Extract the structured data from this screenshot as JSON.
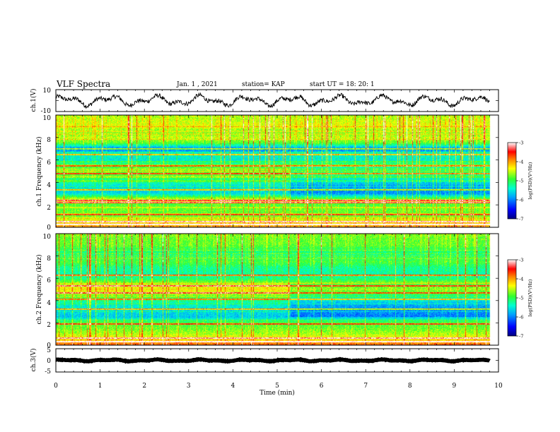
{
  "header": {
    "title": "VLF Spectra",
    "date": "Jan. 1 , 2021",
    "station": "station= KAP",
    "start_ut": "start UT = 18: 20: 1"
  },
  "chart_data": {
    "type": "heatmap",
    "title": "VLF Spectra",
    "xlabel": "Time (min)",
    "xlim": [
      0,
      10
    ],
    "x_ticks": [
      "0",
      "1",
      "2",
      "3",
      "4",
      "5",
      "6",
      "7",
      "8",
      "9",
      "10"
    ],
    "data_end_min": 9.8,
    "panels": [
      {
        "id": "ch1-waveform",
        "type": "line",
        "ylabel": "ch.1(V)",
        "ylim": [
          -10,
          10
        ],
        "y_ticks": [
          "10",
          "-10"
        ],
        "mean": 0,
        "oscillation_amplitude": 5
      },
      {
        "id": "ch1-spectrogram",
        "type": "heatmap",
        "ylabel": "ch.1 Frequency (kHz)",
        "ylim": [
          0,
          10
        ],
        "y_ticks": [
          "10",
          "8",
          "6",
          "4",
          "2",
          "0"
        ],
        "colorbar": {
          "label": "log(PSD)(V²/Hz)",
          "range": [
            -7,
            -3
          ],
          "ticks": [
            "-3",
            "-4",
            "-5",
            "-6",
            "-7"
          ]
        },
        "base_level_by_freq_khz": {
          "freqs": [
            0,
            0.5,
            1,
            1.5,
            2,
            2.5,
            3,
            3.5,
            4,
            4.5,
            5,
            5.5,
            6,
            6.5,
            7,
            7.5,
            8,
            8.5,
            9,
            9.5,
            10
          ],
          "log_psd": [
            -4.0,
            -4.3,
            -4.9,
            -4.8,
            -4.9,
            -4.5,
            -5.6,
            -5.6,
            -5.3,
            -5.0,
            -4.7,
            -5.0,
            -5.5,
            -5.4,
            -6.1,
            -4.9,
            -4.5,
            -4.8,
            -4.4,
            -4.5,
            -4.6
          ]
        },
        "strong_lines_khz": [
          0.2,
          0.5,
          1.1,
          2.2,
          2.4,
          3.3,
          4.8,
          5.5,
          6.5,
          7.0
        ]
      },
      {
        "id": "ch2-spectrogram",
        "type": "heatmap",
        "ylabel": "ch.2 Frequency (kHz)",
        "ylim": [
          0,
          10
        ],
        "y_ticks": [
          "10",
          "8",
          "6",
          "4",
          "2",
          "0"
        ],
        "colorbar": {
          "label": "log(PSD)(V²/Hz)",
          "range": [
            -7,
            -3
          ],
          "ticks": [
            "-3",
            "-4",
            "-5",
            "-6",
            "-7"
          ]
        },
        "base_level_by_freq_khz": {
          "freqs": [
            0,
            0.5,
            1,
            1.5,
            2,
            2.5,
            3,
            3.5,
            4,
            4.5,
            5,
            5.5,
            6,
            6.5,
            7,
            7.5,
            8,
            8.5,
            9,
            9.5,
            10
          ],
          "log_psd": [
            -3.8,
            -4.3,
            -4.6,
            -4.8,
            -4.9,
            -5.7,
            -5.6,
            -5.5,
            -5.2,
            -4.7,
            -4.3,
            -4.6,
            -5.2,
            -5.3,
            -5.2,
            -4.9,
            -5.2,
            -5.1,
            -4.8,
            -4.8,
            -4.7
          ]
        },
        "strong_lines_khz": [
          0.3,
          0.6,
          1.9,
          3.2,
          4.1,
          4.7,
          5.3,
          6.3
        ]
      },
      {
        "id": "ch3-waveform",
        "type": "line",
        "ylabel": "ch.3(V)",
        "ylim": [
          -5,
          5
        ],
        "y_ticks": [
          "5",
          "0",
          "-5"
        ],
        "mean": 0,
        "oscillation_amplitude": 0.4
      }
    ]
  }
}
